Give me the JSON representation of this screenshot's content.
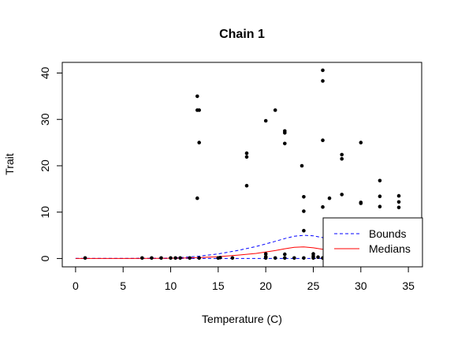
{
  "chart_data": {
    "type": "scatter",
    "title": "Chain 1",
    "xlabel": "Temperature (C)",
    "ylabel": "Trait",
    "xlim": [
      -1.4,
      36.4
    ],
    "ylim": [
      -1.8,
      42.3
    ],
    "xticks": [
      0,
      5,
      10,
      15,
      20,
      25,
      30,
      35
    ],
    "yticks": [
      0,
      10,
      20,
      30,
      40
    ],
    "grid": false,
    "legend_position": "bottom-right",
    "points": [
      {
        "x": 1,
        "y": 0.1
      },
      {
        "x": 7,
        "y": 0.1
      },
      {
        "x": 8,
        "y": 0.1
      },
      {
        "x": 9,
        "y": 0.1
      },
      {
        "x": 10,
        "y": 0.1
      },
      {
        "x": 10.5,
        "y": 0.1
      },
      {
        "x": 11,
        "y": 0.1
      },
      {
        "x": 12,
        "y": 0.1
      },
      {
        "x": 12.8,
        "y": 35
      },
      {
        "x": 12.8,
        "y": 32
      },
      {
        "x": 13,
        "y": 32
      },
      {
        "x": 13,
        "y": 25
      },
      {
        "x": 12.8,
        "y": 13
      },
      {
        "x": 13,
        "y": 0.1
      },
      {
        "x": 15,
        "y": 0.1
      },
      {
        "x": 15.2,
        "y": 0.2
      },
      {
        "x": 16.5,
        "y": 0.1
      },
      {
        "x": 18,
        "y": 22.7
      },
      {
        "x": 18,
        "y": 21.9
      },
      {
        "x": 18,
        "y": 15.7
      },
      {
        "x": 20,
        "y": 29.7
      },
      {
        "x": 20,
        "y": 1.0
      },
      {
        "x": 20,
        "y": 0.4
      },
      {
        "x": 20,
        "y": 0.1
      },
      {
        "x": 21,
        "y": 32
      },
      {
        "x": 21,
        "y": 0.1
      },
      {
        "x": 22,
        "y": 27.5
      },
      {
        "x": 22,
        "y": 27.1
      },
      {
        "x": 22,
        "y": 24.8
      },
      {
        "x": 22,
        "y": 0.9
      },
      {
        "x": 22,
        "y": 0.1
      },
      {
        "x": 23,
        "y": 0.1
      },
      {
        "x": 23.8,
        "y": 20
      },
      {
        "x": 24,
        "y": 13.3
      },
      {
        "x": 24,
        "y": 10.2
      },
      {
        "x": 24,
        "y": 6.0
      },
      {
        "x": 24,
        "y": 0.1
      },
      {
        "x": 25,
        "y": 1.0
      },
      {
        "x": 25,
        "y": 0.5
      },
      {
        "x": 25,
        "y": 0.1
      },
      {
        "x": 25.5,
        "y": 0.3
      },
      {
        "x": 26,
        "y": 40.6
      },
      {
        "x": 26,
        "y": 38.3
      },
      {
        "x": 26,
        "y": 25.5
      },
      {
        "x": 26,
        "y": 11.1
      },
      {
        "x": 26,
        "y": 0.1
      },
      {
        "x": 26.7,
        "y": 13
      },
      {
        "x": 27,
        "y": 0.4
      },
      {
        "x": 28,
        "y": 22.4
      },
      {
        "x": 28,
        "y": 21.5
      },
      {
        "x": 28,
        "y": 13.8
      },
      {
        "x": 30,
        "y": 25
      },
      {
        "x": 30,
        "y": 12.1
      },
      {
        "x": 30,
        "y": 11.9
      },
      {
        "x": 32,
        "y": 16.8
      },
      {
        "x": 32,
        "y": 13.4
      },
      {
        "x": 32,
        "y": 11.2
      },
      {
        "x": 34,
        "y": 13.5
      },
      {
        "x": 34,
        "y": 12.2
      },
      {
        "x": 34,
        "y": 11.0
      }
    ],
    "series": [
      {
        "name": "Bounds",
        "color": "#0000ff",
        "style": "dashed",
        "x": [
          0,
          5,
          9,
          11,
          13,
          15,
          17,
          19,
          21,
          22,
          23,
          24,
          25,
          26,
          27,
          28
        ],
        "y": [
          0,
          0,
          0.05,
          0.2,
          0.5,
          1.0,
          1.7,
          2.6,
          3.7,
          4.3,
          4.8,
          5.0,
          4.9,
          4.5,
          4.2,
          3.9
        ]
      },
      {
        "name": "Bounds",
        "color": "#0000ff",
        "style": "dashed",
        "x": [
          0,
          10,
          15,
          20,
          24,
          28
        ],
        "y": [
          0,
          0,
          0,
          0,
          0,
          0
        ]
      },
      {
        "name": "Medians",
        "color": "#ff0000",
        "style": "solid",
        "x": [
          0,
          5,
          9,
          11,
          13,
          15,
          17,
          19,
          21,
          22,
          23,
          24,
          25,
          26,
          27,
          28
        ],
        "y": [
          0,
          0,
          0.02,
          0.08,
          0.2,
          0.4,
          0.7,
          1.1,
          1.7,
          2.1,
          2.4,
          2.5,
          2.3,
          2.0,
          1.8,
          1.6
        ]
      }
    ],
    "legend": {
      "entries": [
        {
          "label": "Bounds",
          "color": "#0000ff",
          "style": "dashed"
        },
        {
          "label": "Medians",
          "color": "#ff0000",
          "style": "solid"
        }
      ]
    }
  }
}
